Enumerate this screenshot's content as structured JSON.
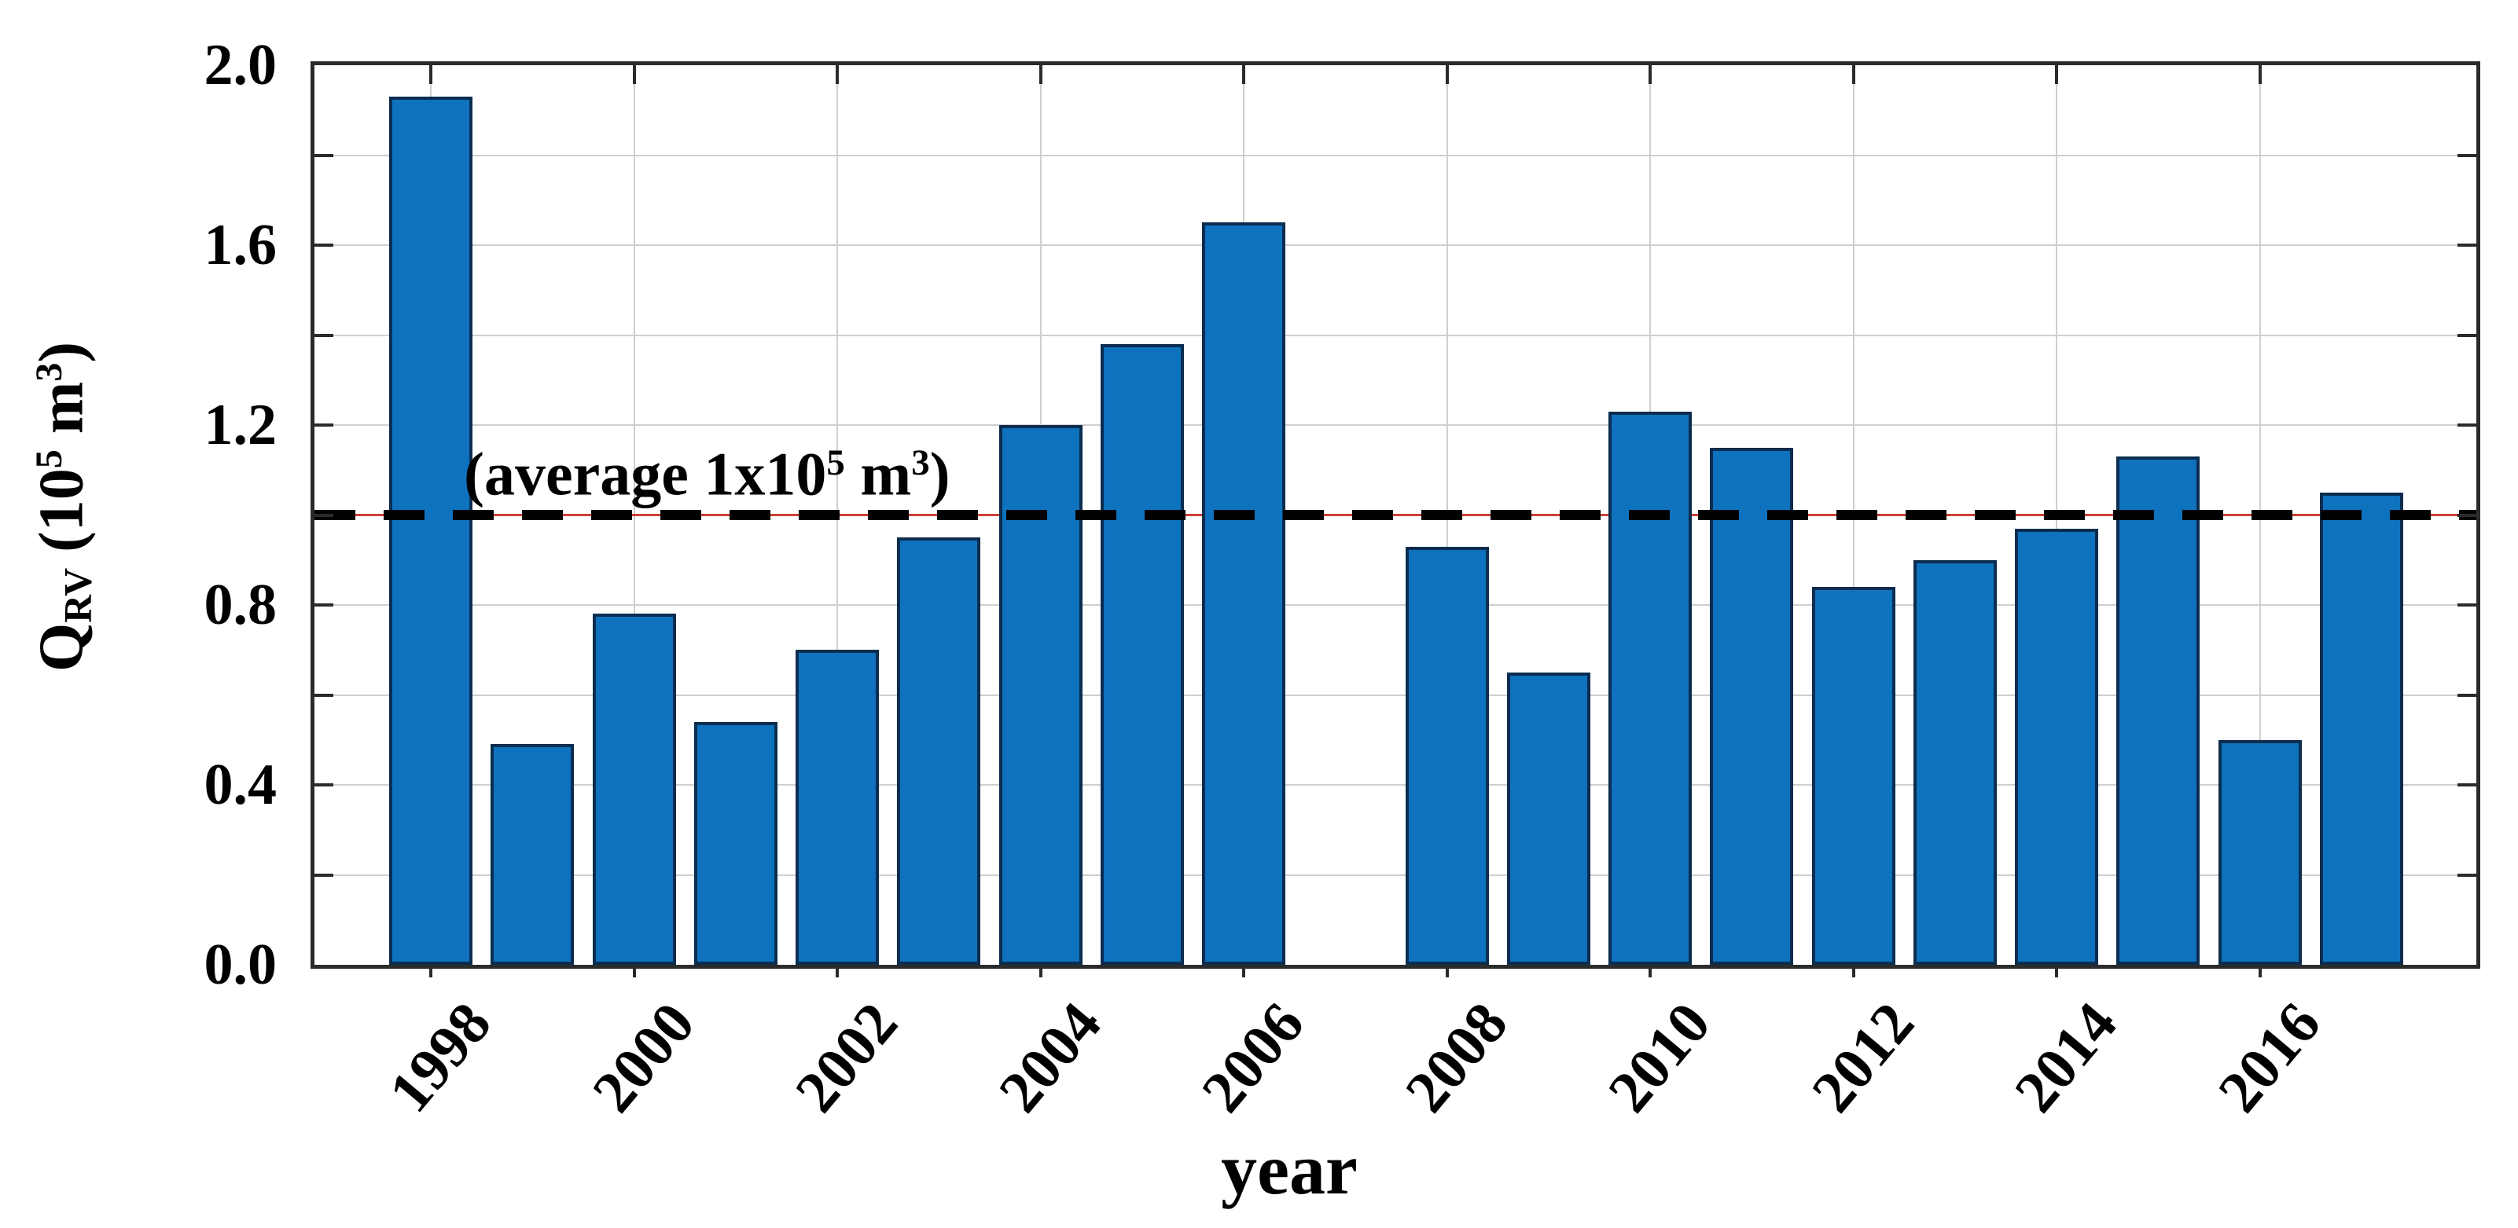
{
  "chart_data": {
    "type": "bar",
    "title": "",
    "xlabel": "year",
    "ylabel": "Q_RV (10^5 m^3)",
    "x": [
      1998,
      1999,
      2000,
      2001,
      2002,
      2003,
      2004,
      2005,
      2006,
      2007,
      2008,
      2009,
      2010,
      2011,
      2012,
      2013,
      2014,
      2015,
      2016,
      2017
    ],
    "values": [
      1.93,
      0.49,
      0.78,
      0.54,
      0.7,
      0.95,
      1.2,
      1.38,
      1.65,
      null,
      0.93,
      0.65,
      1.23,
      1.15,
      0.84,
      0.9,
      0.97,
      1.13,
      0.5,
      1.05
    ],
    "ylim": [
      0.0,
      2.0
    ],
    "y_grid_step": 0.2,
    "y_label_step": 0.4,
    "y_ticks": [
      {
        "value": 2.0,
        "label": "2.0"
      },
      {
        "value": 1.6,
        "label": "1.6"
      },
      {
        "value": 1.2,
        "label": "1.2"
      },
      {
        "value": 0.8,
        "label": "0.8"
      },
      {
        "value": 0.4,
        "label": "0.4"
      },
      {
        "value": 0.0,
        "label": "0.0"
      }
    ],
    "x_tick_years": [
      1998,
      2000,
      2002,
      2004,
      2006,
      2008,
      2010,
      2012,
      2014,
      2016
    ],
    "grid": "on",
    "legend": "none",
    "average_line": {
      "value": 1.0,
      "style": "dashed",
      "annotation": "(average 1x10^5 m^3)"
    }
  },
  "figure": {
    "xlabel": "year",
    "ylabel_parts": [
      {
        "text": "Q"
      },
      {
        "text": "RV",
        "script": "sub"
      },
      {
        "text": "  (10"
      },
      {
        "text": "5",
        "script": "sup"
      },
      {
        "text": " m"
      },
      {
        "text": "3",
        "script": "sup"
      },
      {
        "text": ")"
      }
    ],
    "annotation_parts": [
      {
        "text": "(average 1x10"
      },
      {
        "text": "5",
        "script": "sup"
      },
      {
        "text": " m"
      },
      {
        "text": "3",
        "script": "sup"
      },
      {
        "text": ")"
      }
    ],
    "colors": {
      "bar_fill": "#0E72BE",
      "bar_edge": "#0B2D4F",
      "frame": "#2B2B2B",
      "grid": "#CFCFCF",
      "average_dash": "#000000",
      "average_underline": "#D04038",
      "text": "#000000",
      "background": "#FFFFFF"
    }
  }
}
